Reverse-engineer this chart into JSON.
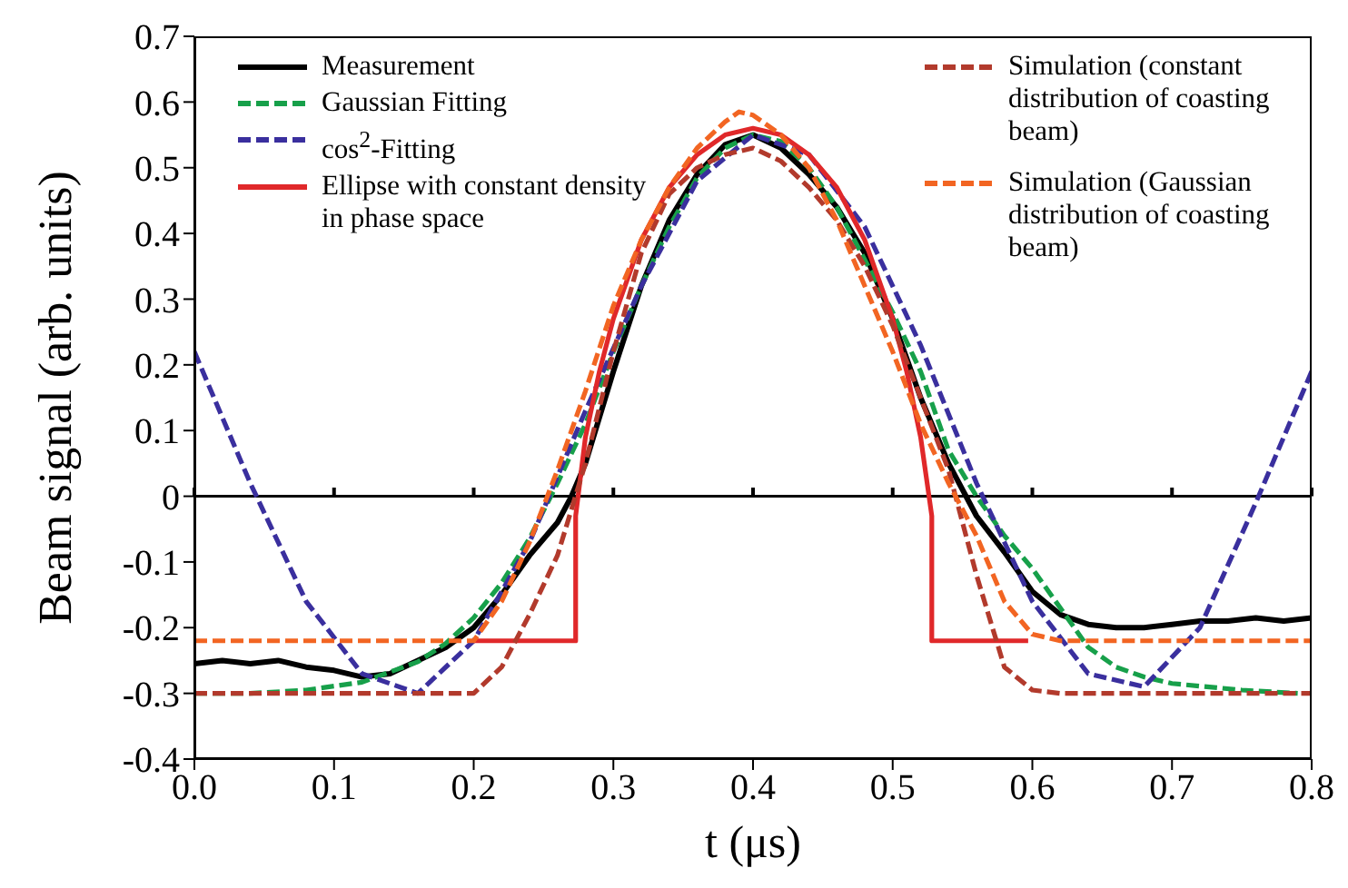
{
  "chart_data": {
    "type": "line",
    "xlabel": "t (μs)",
    "ylabel": "Beam signal (arb. units)",
    "xlim": [
      0,
      0.8
    ],
    "xticks": [
      {
        "value": 0,
        "label": "0.0"
      },
      0.1,
      0.2,
      0.3,
      0.4,
      0.5,
      0.6,
      0.7,
      0.8
    ],
    "ylim": [
      -0.4,
      0.7
    ],
    "yticks": [
      -0.4,
      -0.3,
      -0.2,
      -0.1,
      0,
      0.1,
      0.2,
      0.3,
      0.4,
      0.5,
      0.6,
      0.7
    ],
    "legend": "top",
    "marker": "none",
    "ref_lines": [
      {
        "axis": "y",
        "value": 0,
        "color": "#000000"
      }
    ],
    "series": [
      {
        "name": "Measurement",
        "color": "#000000",
        "line_style": "solid",
        "x": [
          0,
          0.02,
          0.04,
          0.06,
          0.08,
          0.1,
          0.12,
          0.14,
          0.16,
          0.18,
          0.2,
          0.22,
          0.24,
          0.26,
          0.27,
          0.28,
          0.3,
          0.32,
          0.34,
          0.36,
          0.38,
          0.4,
          0.42,
          0.44,
          0.46,
          0.48,
          0.5,
          0.52,
          0.54,
          0.56,
          0.58,
          0.6,
          0.62,
          0.64,
          0.66,
          0.68,
          0.7,
          0.72,
          0.74,
          0.76,
          0.78,
          0.8
        ],
        "values": [
          -0.255,
          -0.25,
          -0.255,
          -0.25,
          -0.26,
          -0.265,
          -0.275,
          -0.27,
          -0.25,
          -0.23,
          -0.2,
          -0.15,
          -0.09,
          -0.04,
          0,
          0.05,
          0.19,
          0.32,
          0.42,
          0.49,
          0.535,
          0.55,
          0.53,
          0.49,
          0.44,
          0.37,
          0.27,
          0.15,
          0.05,
          -0.03,
          -0.085,
          -0.145,
          -0.18,
          -0.195,
          -0.2,
          -0.2,
          -0.195,
          -0.19,
          -0.19,
          -0.185,
          -0.19,
          -0.185
        ]
      },
      {
        "name": "Gaussian Fitting",
        "color": "#17a04a",
        "line_style": "dashed",
        "x": [
          0,
          0.04,
          0.08,
          0.12,
          0.16,
          0.18,
          0.2,
          0.22,
          0.24,
          0.26,
          0.28,
          0.3,
          0.32,
          0.34,
          0.36,
          0.38,
          0.4,
          0.42,
          0.44,
          0.46,
          0.48,
          0.5,
          0.52,
          0.54,
          0.56,
          0.58,
          0.6,
          0.62,
          0.64,
          0.66,
          0.68,
          0.7,
          0.75,
          0.79
        ],
        "values": [
          -0.3,
          -0.3,
          -0.295,
          -0.283,
          -0.252,
          -0.224,
          -0.185,
          -0.132,
          -0.064,
          0.02,
          0.11,
          0.22,
          0.32,
          0.41,
          0.485,
          0.53,
          0.55,
          0.54,
          0.5,
          0.44,
          0.36,
          0.28,
          0.19,
          0.07,
          0,
          -0.06,
          -0.11,
          -0.17,
          -0.23,
          -0.26,
          -0.275,
          -0.285,
          -0.295,
          -0.3
        ]
      },
      {
        "name": "cos$^{2}$-Fitting",
        "color": "#3a2f9e",
        "line_style": "dashed",
        "x": [
          0,
          0.04,
          0.08,
          0.12,
          0.16,
          0.2,
          0.24,
          0.28,
          0.32,
          0.36,
          0.4,
          0.44,
          0.48,
          0.52,
          0.56,
          0.6,
          0.64,
          0.68,
          0.72,
          0.76,
          0.8
        ],
        "values": [
          0.22,
          0.02,
          -0.16,
          -0.27,
          -0.3,
          -0.22,
          -0.07,
          0.13,
          0.32,
          0.48,
          0.55,
          0.52,
          0.41,
          0.23,
          0.02,
          -0.16,
          -0.27,
          -0.29,
          -0.2,
          -0.01,
          0.19
        ]
      },
      {
        "name": "Ellipse with constant density in phase space",
        "color": "#e0282a",
        "line_style": "solid",
        "x": [
          0.2,
          0.273,
          0.273,
          0.28,
          0.29,
          0.3,
          0.32,
          0.34,
          0.36,
          0.38,
          0.4,
          0.42,
          0.44,
          0.46,
          0.48,
          0.5,
          0.51,
          0.52,
          0.528,
          0.528,
          0.597
        ],
        "values": [
          -0.22,
          -0.22,
          -0.03,
          0.09,
          0.19,
          0.27,
          0.39,
          0.47,
          0.52,
          0.55,
          0.56,
          0.55,
          0.52,
          0.47,
          0.39,
          0.27,
          0.19,
          0.09,
          -0.03,
          -0.22,
          -0.22
        ]
      },
      {
        "name": "Simulation (constant distribution of coasting beam)",
        "color": "#b23a2c",
        "line_style": "dashed",
        "x": [
          0,
          0.2,
          0.22,
          0.24,
          0.26,
          0.28,
          0.3,
          0.32,
          0.34,
          0.36,
          0.38,
          0.4,
          0.42,
          0.44,
          0.46,
          0.48,
          0.5,
          0.52,
          0.54,
          0.56,
          0.58,
          0.6,
          0.62,
          0.8
        ],
        "values": [
          -0.3,
          -0.3,
          -0.26,
          -0.18,
          -0.09,
          0.05,
          0.22,
          0.37,
          0.46,
          0.5,
          0.52,
          0.53,
          0.51,
          0.47,
          0.42,
          0.35,
          0.26,
          0.15,
          0.04,
          -0.12,
          -0.26,
          -0.295,
          -0.3,
          -0.3
        ]
      },
      {
        "name": "Simulation (Gaussian distribution of coasting beam)",
        "color": "#f26522",
        "line_style": "dashed",
        "x": [
          0,
          0.2,
          0.22,
          0.24,
          0.26,
          0.28,
          0.3,
          0.32,
          0.34,
          0.36,
          0.38,
          0.39,
          0.4,
          0.42,
          0.44,
          0.46,
          0.48,
          0.5,
          0.52,
          0.54,
          0.56,
          0.58,
          0.6,
          0.62,
          0.8
        ],
        "values": [
          -0.22,
          -0.22,
          -0.16,
          -0.07,
          0.04,
          0.16,
          0.29,
          0.39,
          0.47,
          0.53,
          0.57,
          0.585,
          0.58,
          0.55,
          0.5,
          0.42,
          0.32,
          0.22,
          0.11,
          0.02,
          -0.06,
          -0.16,
          -0.21,
          -0.22,
          -0.22
        ]
      }
    ]
  }
}
